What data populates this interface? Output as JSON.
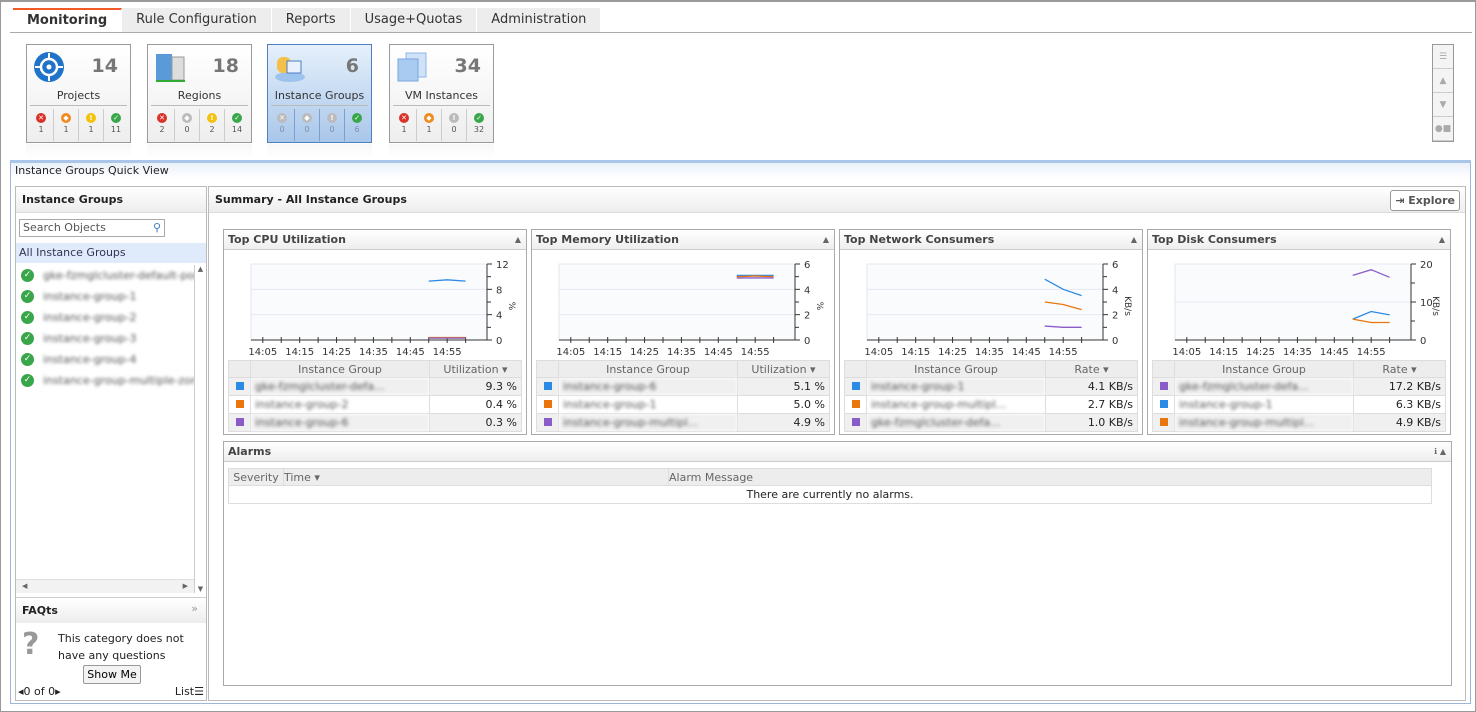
{
  "tabs": [
    "Monitoring",
    "Rule Configuration",
    "Reports",
    "Usage+Quotas",
    "Administration"
  ],
  "tiles": [
    {
      "label": "Projects",
      "count": "14",
      "icon": "projects-target-icon",
      "status": [
        "1",
        "1",
        "1",
        "11"
      ]
    },
    {
      "label": "Regions",
      "count": "18",
      "icon": "regions-building-icon",
      "status": [
        "2",
        "0",
        "2",
        "14"
      ]
    },
    {
      "label": "Instance Groups",
      "count": "6",
      "icon": "instance-groups-icon",
      "status": [
        "0",
        "0",
        "0",
        "6"
      ],
      "selected": true
    },
    {
      "label": "VM Instances",
      "count": "34",
      "icon": "vm-instances-icon",
      "status": [
        "1",
        "1",
        "0",
        "32"
      ]
    }
  ],
  "quick_view_title": "Instance Groups Quick View",
  "left": {
    "title": "Instance Groups",
    "search_placeholder": "Search Objects",
    "all": "All Instance Groups",
    "items": [
      "gke-fzmglcluster-default-pool-",
      "instance-group-1",
      "instance-group-2",
      "instance-group-3",
      "instance-group-4",
      "instance-group-multiple-zones"
    ],
    "faq_title": "FAQts",
    "faq_text": "This category does not have any questions",
    "show_me": "Show Me",
    "pager": "0 of 0",
    "list": "List"
  },
  "summary": {
    "title": "Summary - All Instance Groups",
    "explore": "Explore"
  },
  "colors": {
    "blue": "#2a8ae6",
    "orange": "#e8760c",
    "purple": "#8a5cc8"
  },
  "chart_data": [
    {
      "type": "line",
      "title": "Top CPU Utilization",
      "ylabel": "%",
      "ylim": [
        0,
        12
      ],
      "yticks": [
        0,
        4,
        8,
        12
      ],
      "xticks": [
        "14:05",
        "14:15",
        "14:25",
        "14:35",
        "14:45",
        "14:55"
      ],
      "x": [
        "14:50",
        "14:55",
        "15:00"
      ],
      "series": [
        {
          "color": "blue",
          "values": [
            9.3,
            9.5,
            9.3
          ]
        },
        {
          "color": "orange",
          "values": [
            0.4,
            0.4,
            0.4
          ]
        },
        {
          "color": "purple",
          "values": [
            0.3,
            0.3,
            0.3
          ]
        }
      ],
      "col1": "Instance Group",
      "col2": "Utilization",
      "rows": [
        [
          "gke-fzmglcluster-defa...",
          "9.3 %",
          "blue"
        ],
        [
          "instance-group-2",
          "0.4 %",
          "orange"
        ],
        [
          "instance-group-6",
          "0.3 %",
          "purple"
        ]
      ]
    },
    {
      "type": "line",
      "title": "Top Memory Utilization",
      "ylabel": "%",
      "ylim": [
        0,
        6
      ],
      "yticks": [
        0,
        2,
        4,
        6
      ],
      "xticks": [
        "14:05",
        "14:15",
        "14:25",
        "14:35",
        "14:45",
        "14:55"
      ],
      "x": [
        "14:50",
        "14:55",
        "15:00"
      ],
      "series": [
        {
          "color": "blue",
          "values": [
            5.1,
            5.1,
            5.1
          ]
        },
        {
          "color": "orange",
          "values": [
            5.0,
            5.05,
            5.0
          ]
        },
        {
          "color": "purple",
          "values": [
            4.9,
            4.9,
            4.9
          ]
        }
      ],
      "col1": "Instance Group",
      "col2": "Utilization",
      "rows": [
        [
          "instance-group-6",
          "5.1 %",
          "blue"
        ],
        [
          "instance-group-1",
          "5.0 %",
          "orange"
        ],
        [
          "instance-group-multipl...",
          "4.9 %",
          "purple"
        ]
      ]
    },
    {
      "type": "line",
      "title": "Top Network Consumers",
      "ylabel": "KB/s",
      "ylim": [
        0,
        6
      ],
      "yticks": [
        0,
        2,
        4,
        6
      ],
      "xticks": [
        "14:05",
        "14:15",
        "14:25",
        "14:35",
        "14:45",
        "14:55"
      ],
      "x": [
        "14:50",
        "14:55",
        "15:00"
      ],
      "series": [
        {
          "color": "blue",
          "values": [
            4.8,
            4.0,
            3.5
          ]
        },
        {
          "color": "orange",
          "values": [
            3.0,
            2.8,
            2.4
          ]
        },
        {
          "color": "purple",
          "values": [
            1.1,
            1.0,
            1.0
          ]
        }
      ],
      "col1": "Instance Group",
      "col2": "Rate",
      "rows": [
        [
          "instance-group-1",
          "4.1 KB/s",
          "blue"
        ],
        [
          "instance-group-multipl...",
          "2.7 KB/s",
          "orange"
        ],
        [
          "gke-fzmglcluster-defa...",
          "1.0 KB/s",
          "purple"
        ]
      ]
    },
    {
      "type": "line",
      "title": "Top Disk Consumers",
      "ylabel": "KB/s",
      "ylim": [
        0,
        20
      ],
      "yticks": [
        0,
        10,
        20
      ],
      "xticks": [
        "14:05",
        "14:15",
        "14:25",
        "14:35",
        "14:45",
        "14:55"
      ],
      "x": [
        "14:50",
        "14:55",
        "15:00"
      ],
      "series": [
        {
          "color": "purple",
          "values": [
            17,
            18.5,
            16.5
          ]
        },
        {
          "color": "blue",
          "values": [
            5.5,
            7.5,
            6.6
          ]
        },
        {
          "color": "orange",
          "values": [
            5.5,
            4.6,
            4.6
          ]
        }
      ],
      "col1": "Instance Group",
      "col2": "Rate",
      "rows": [
        [
          "gke-fzmglcluster-defa...",
          "17.2 KB/s",
          "purple"
        ],
        [
          "instance-group-1",
          "6.3 KB/s",
          "blue"
        ],
        [
          "instance-group-multipl...",
          "4.9 KB/s",
          "orange"
        ]
      ]
    }
  ],
  "alarms": {
    "title": "Alarms",
    "cols": [
      "Severity",
      "Time",
      "Alarm Message"
    ],
    "empty": "There are currently no alarms."
  }
}
